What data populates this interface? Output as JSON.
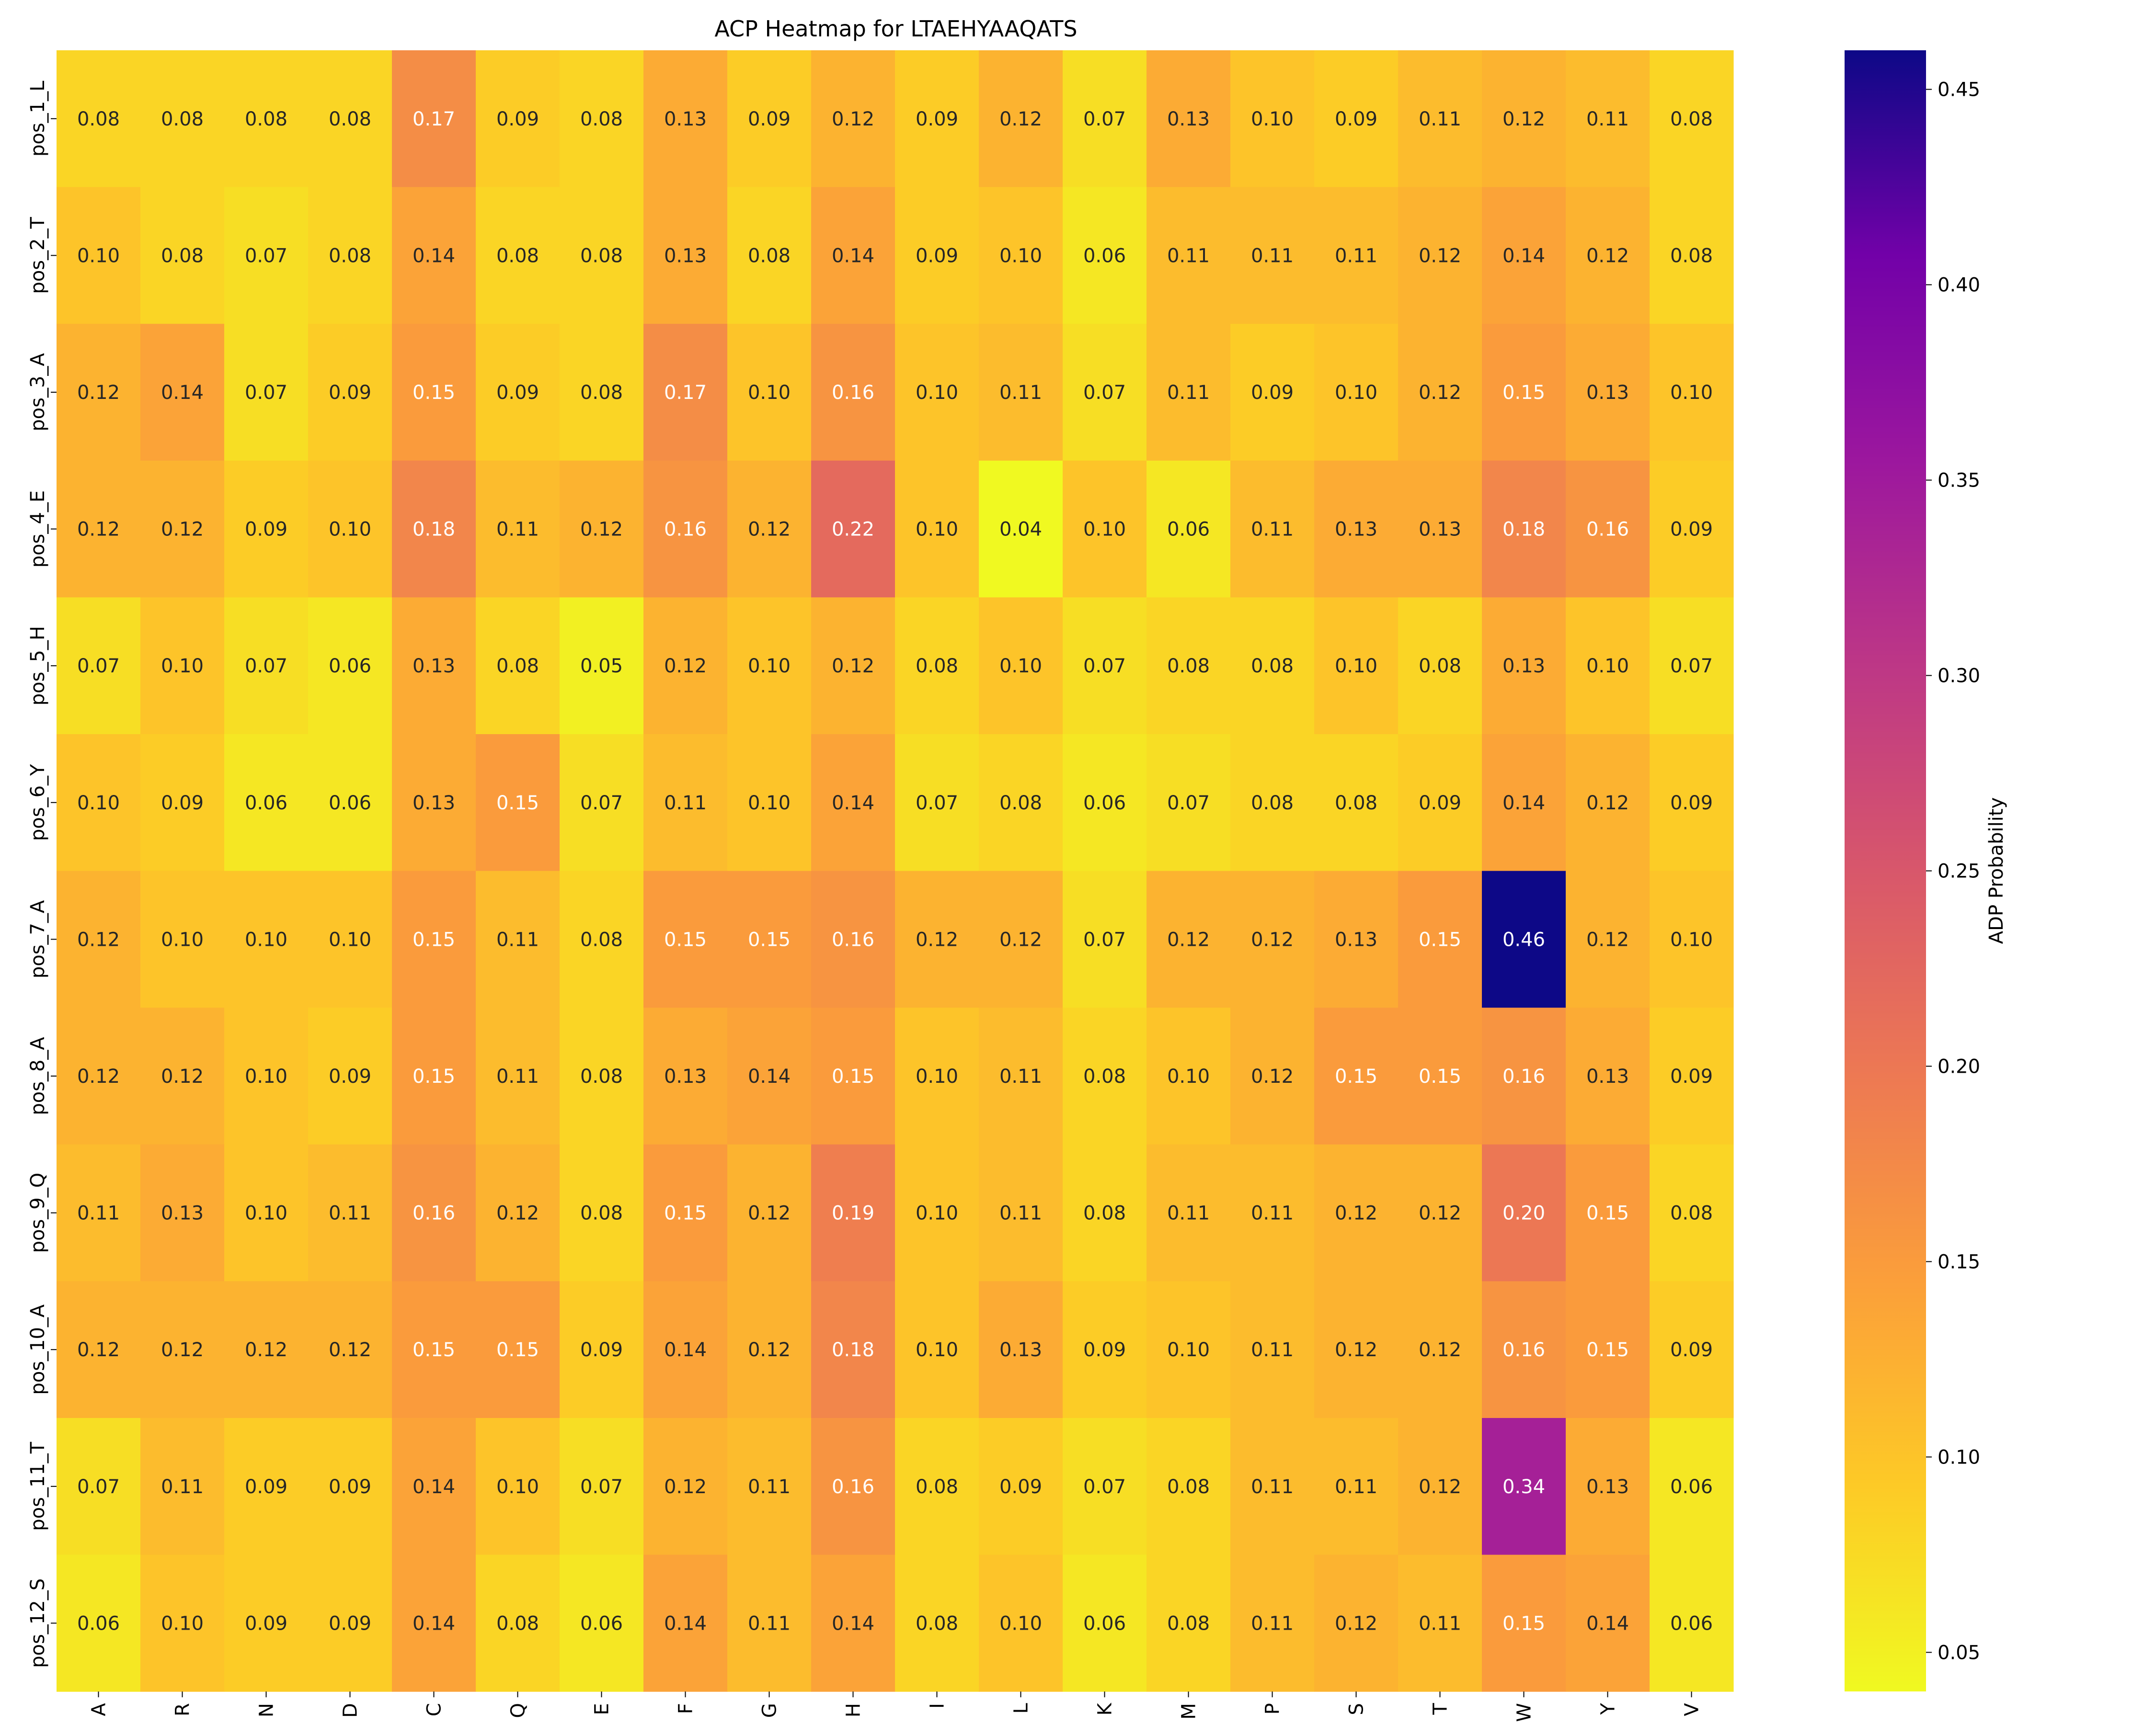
{
  "chart_data": {
    "type": "heatmap",
    "title": "ACP Heatmap for LTAEHYAAQATS",
    "xlabel": "",
    "ylabel": "",
    "colorbar_label": "ADP Probability",
    "colormap": "plasma (reversed)",
    "color_range": [
      0.04,
      0.46
    ],
    "colorbar_ticks": [
      "0.05",
      "0.10",
      "0.15",
      "0.20",
      "0.25",
      "0.30",
      "0.35",
      "0.40",
      "0.45"
    ],
    "x_categories": [
      "A",
      "R",
      "N",
      "D",
      "C",
      "Q",
      "E",
      "F",
      "G",
      "H",
      "I",
      "L",
      "K",
      "M",
      "P",
      "S",
      "T",
      "W",
      "Y",
      "V"
    ],
    "y_categories": [
      "pos_1_L",
      "pos_2_T",
      "pos_3_A",
      "pos_4_E",
      "pos_5_H",
      "pos_6_Y",
      "pos_7_A",
      "pos_8_A",
      "pos_9_Q",
      "pos_10_A",
      "pos_11_T",
      "pos_12_S"
    ],
    "values": [
      [
        0.08,
        0.08,
        0.08,
        0.08,
        0.17,
        0.09,
        0.08,
        0.13,
        0.09,
        0.12,
        0.09,
        0.12,
        0.07,
        0.13,
        0.1,
        0.09,
        0.11,
        0.12,
        0.11,
        0.08
      ],
      [
        0.1,
        0.08,
        0.07,
        0.08,
        0.14,
        0.08,
        0.08,
        0.13,
        0.08,
        0.14,
        0.09,
        0.1,
        0.06,
        0.11,
        0.11,
        0.11,
        0.12,
        0.14,
        0.12,
        0.08
      ],
      [
        0.12,
        0.14,
        0.07,
        0.09,
        0.15,
        0.09,
        0.08,
        0.17,
        0.1,
        0.16,
        0.1,
        0.11,
        0.07,
        0.11,
        0.09,
        0.1,
        0.12,
        0.15,
        0.13,
        0.1
      ],
      [
        0.12,
        0.12,
        0.09,
        0.1,
        0.18,
        0.11,
        0.12,
        0.16,
        0.12,
        0.22,
        0.1,
        0.04,
        0.1,
        0.06,
        0.11,
        0.13,
        0.13,
        0.18,
        0.16,
        0.09
      ],
      [
        0.07,
        0.1,
        0.07,
        0.06,
        0.13,
        0.08,
        0.05,
        0.12,
        0.1,
        0.12,
        0.08,
        0.1,
        0.07,
        0.08,
        0.08,
        0.1,
        0.08,
        0.13,
        0.1,
        0.07
      ],
      [
        0.1,
        0.09,
        0.06,
        0.06,
        0.13,
        0.15,
        0.07,
        0.11,
        0.1,
        0.14,
        0.07,
        0.08,
        0.06,
        0.07,
        0.08,
        0.08,
        0.09,
        0.14,
        0.12,
        0.09
      ],
      [
        0.12,
        0.1,
        0.1,
        0.1,
        0.15,
        0.11,
        0.08,
        0.15,
        0.15,
        0.16,
        0.12,
        0.12,
        0.07,
        0.12,
        0.12,
        0.13,
        0.15,
        0.46,
        0.12,
        0.1
      ],
      [
        0.12,
        0.12,
        0.1,
        0.09,
        0.15,
        0.11,
        0.08,
        0.13,
        0.14,
        0.15,
        0.1,
        0.11,
        0.08,
        0.1,
        0.12,
        0.15,
        0.15,
        0.16,
        0.13,
        0.09
      ],
      [
        0.11,
        0.13,
        0.1,
        0.11,
        0.16,
        0.12,
        0.08,
        0.15,
        0.12,
        0.19,
        0.1,
        0.11,
        0.08,
        0.11,
        0.11,
        0.12,
        0.12,
        0.2,
        0.15,
        0.08
      ],
      [
        0.12,
        0.12,
        0.12,
        0.12,
        0.15,
        0.15,
        0.09,
        0.14,
        0.12,
        0.18,
        0.1,
        0.13,
        0.09,
        0.1,
        0.11,
        0.12,
        0.12,
        0.16,
        0.15,
        0.09
      ],
      [
        0.07,
        0.11,
        0.09,
        0.09,
        0.14,
        0.1,
        0.07,
        0.12,
        0.11,
        0.16,
        0.08,
        0.09,
        0.07,
        0.08,
        0.11,
        0.11,
        0.12,
        0.34,
        0.13,
        0.06
      ],
      [
        0.06,
        0.1,
        0.09,
        0.09,
        0.14,
        0.08,
        0.06,
        0.14,
        0.11,
        0.14,
        0.08,
        0.1,
        0.06,
        0.08,
        0.11,
        0.12,
        0.11,
        0.15,
        0.14,
        0.06
      ]
    ]
  }
}
